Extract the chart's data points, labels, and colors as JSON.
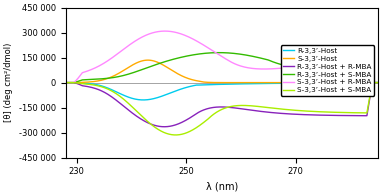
{
  "xlabel": "λ (nm)",
  "ylabel": "[θ] (deg cm²/dmol)",
  "xlim": [
    228,
    285
  ],
  "ylim": [
    -450000,
    450000
  ],
  "yticks": [
    -450000,
    -300000,
    -150000,
    0,
    150000,
    300000,
    450000
  ],
  "xticks": [
    230,
    250,
    270
  ],
  "legend_entries": [
    "R-3,3’-Host",
    "S-3,3’-Host",
    "R-3,3’-Host + R-MBA",
    "R-3,3’-Host + S-MBA",
    "S-3,3’-Host + R-MBA",
    "S-3,3’-Host + S-MBA"
  ],
  "colors": [
    "#00ccee",
    "#ffaa00",
    "#8822bb",
    "#33bb00",
    "#ff88ff",
    "#aaee00"
  ],
  "background_color": "#ffffff"
}
